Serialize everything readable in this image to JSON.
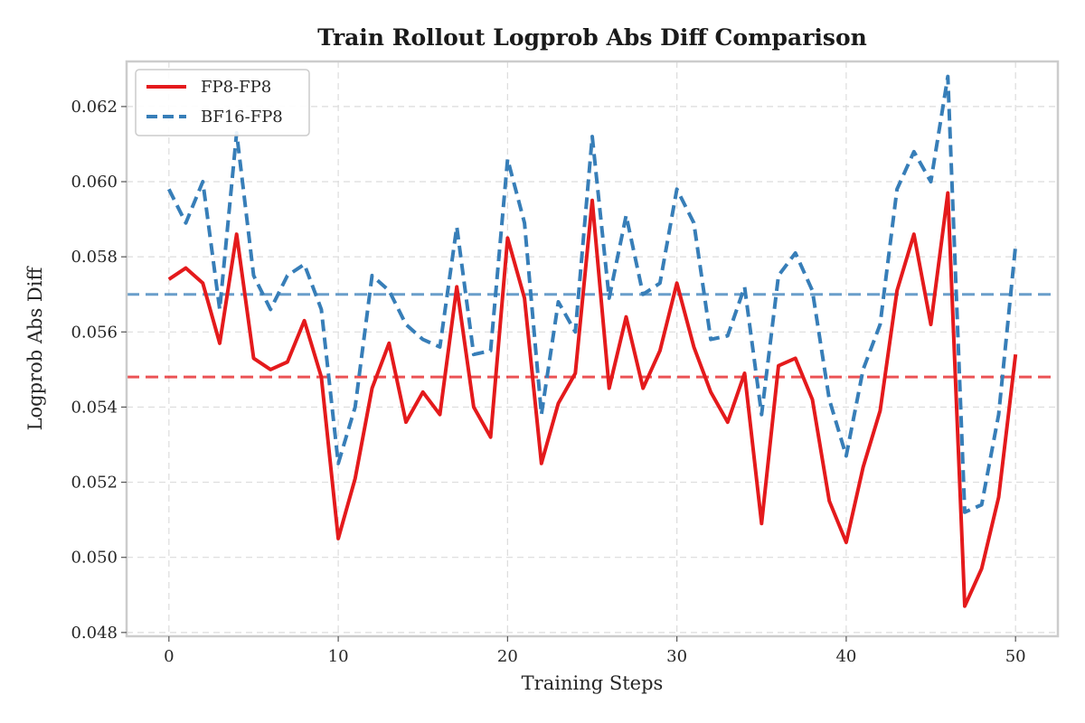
{
  "chart_data": {
    "type": "line",
    "title": "Train Rollout Logprob Abs Diff Comparison",
    "xlabel": "Training Steps",
    "ylabel": "Logprob Abs Diff",
    "xlim": [
      -2.5,
      52.5
    ],
    "ylim": [
      0.0479,
      0.0632
    ],
    "xticks": [
      0,
      10,
      20,
      30,
      40,
      50
    ],
    "yticks": [
      0.048,
      0.05,
      0.052,
      0.054,
      0.056,
      0.058,
      0.06,
      0.062
    ],
    "grid": true,
    "legend_position": "top-left",
    "x": [
      0,
      1,
      2,
      3,
      4,
      5,
      6,
      7,
      8,
      9,
      10,
      11,
      12,
      13,
      14,
      15,
      16,
      17,
      18,
      19,
      20,
      21,
      22,
      23,
      24,
      25,
      26,
      27,
      28,
      29,
      30,
      31,
      32,
      33,
      34,
      35,
      36,
      37,
      38,
      39,
      40,
      41,
      42,
      43,
      44,
      45,
      46,
      47,
      48,
      49,
      50
    ],
    "series": [
      {
        "name": "FP8-FP8",
        "color": "#e41a1c",
        "style": "solid",
        "values": [
          0.0574,
          0.0577,
          0.0573,
          0.0557,
          0.0586,
          0.0553,
          0.055,
          0.0552,
          0.0563,
          0.0548,
          0.0505,
          0.0521,
          0.0545,
          0.0557,
          0.0536,
          0.0544,
          0.0538,
          0.0572,
          0.054,
          0.0532,
          0.0585,
          0.0569,
          0.0525,
          0.0541,
          0.0549,
          0.0595,
          0.0545,
          0.0564,
          0.0545,
          0.0555,
          0.0573,
          0.0556,
          0.0544,
          0.0536,
          0.0549,
          0.0509,
          0.0551,
          0.0553,
          0.0542,
          0.0515,
          0.0504,
          0.0524,
          0.0539,
          0.0571,
          0.0586,
          0.0562,
          0.0597,
          0.0487,
          0.0497,
          0.0516,
          0.0554
        ],
        "mean": 0.0548
      },
      {
        "name": "BF16-FP8",
        "color": "#377eb8",
        "style": "dashed",
        "values": [
          0.0598,
          0.0589,
          0.06,
          0.0566,
          0.0613,
          0.0575,
          0.0566,
          0.0575,
          0.0578,
          0.0566,
          0.0525,
          0.054,
          0.0575,
          0.0571,
          0.0562,
          0.0558,
          0.0556,
          0.0588,
          0.0554,
          0.0555,
          0.0606,
          0.0589,
          0.0538,
          0.0568,
          0.056,
          0.0612,
          0.0569,
          0.0591,
          0.057,
          0.0573,
          0.0598,
          0.0589,
          0.0558,
          0.0559,
          0.0572,
          0.0538,
          0.0575,
          0.0581,
          0.0571,
          0.0542,
          0.0527,
          0.055,
          0.0562,
          0.0598,
          0.0608,
          0.06,
          0.0628,
          0.0512,
          0.0514,
          0.0538,
          0.0583
        ],
        "mean": 0.057
      }
    ]
  },
  "style": {
    "frame_color": "#cccccc",
    "background": "#ffffff"
  }
}
